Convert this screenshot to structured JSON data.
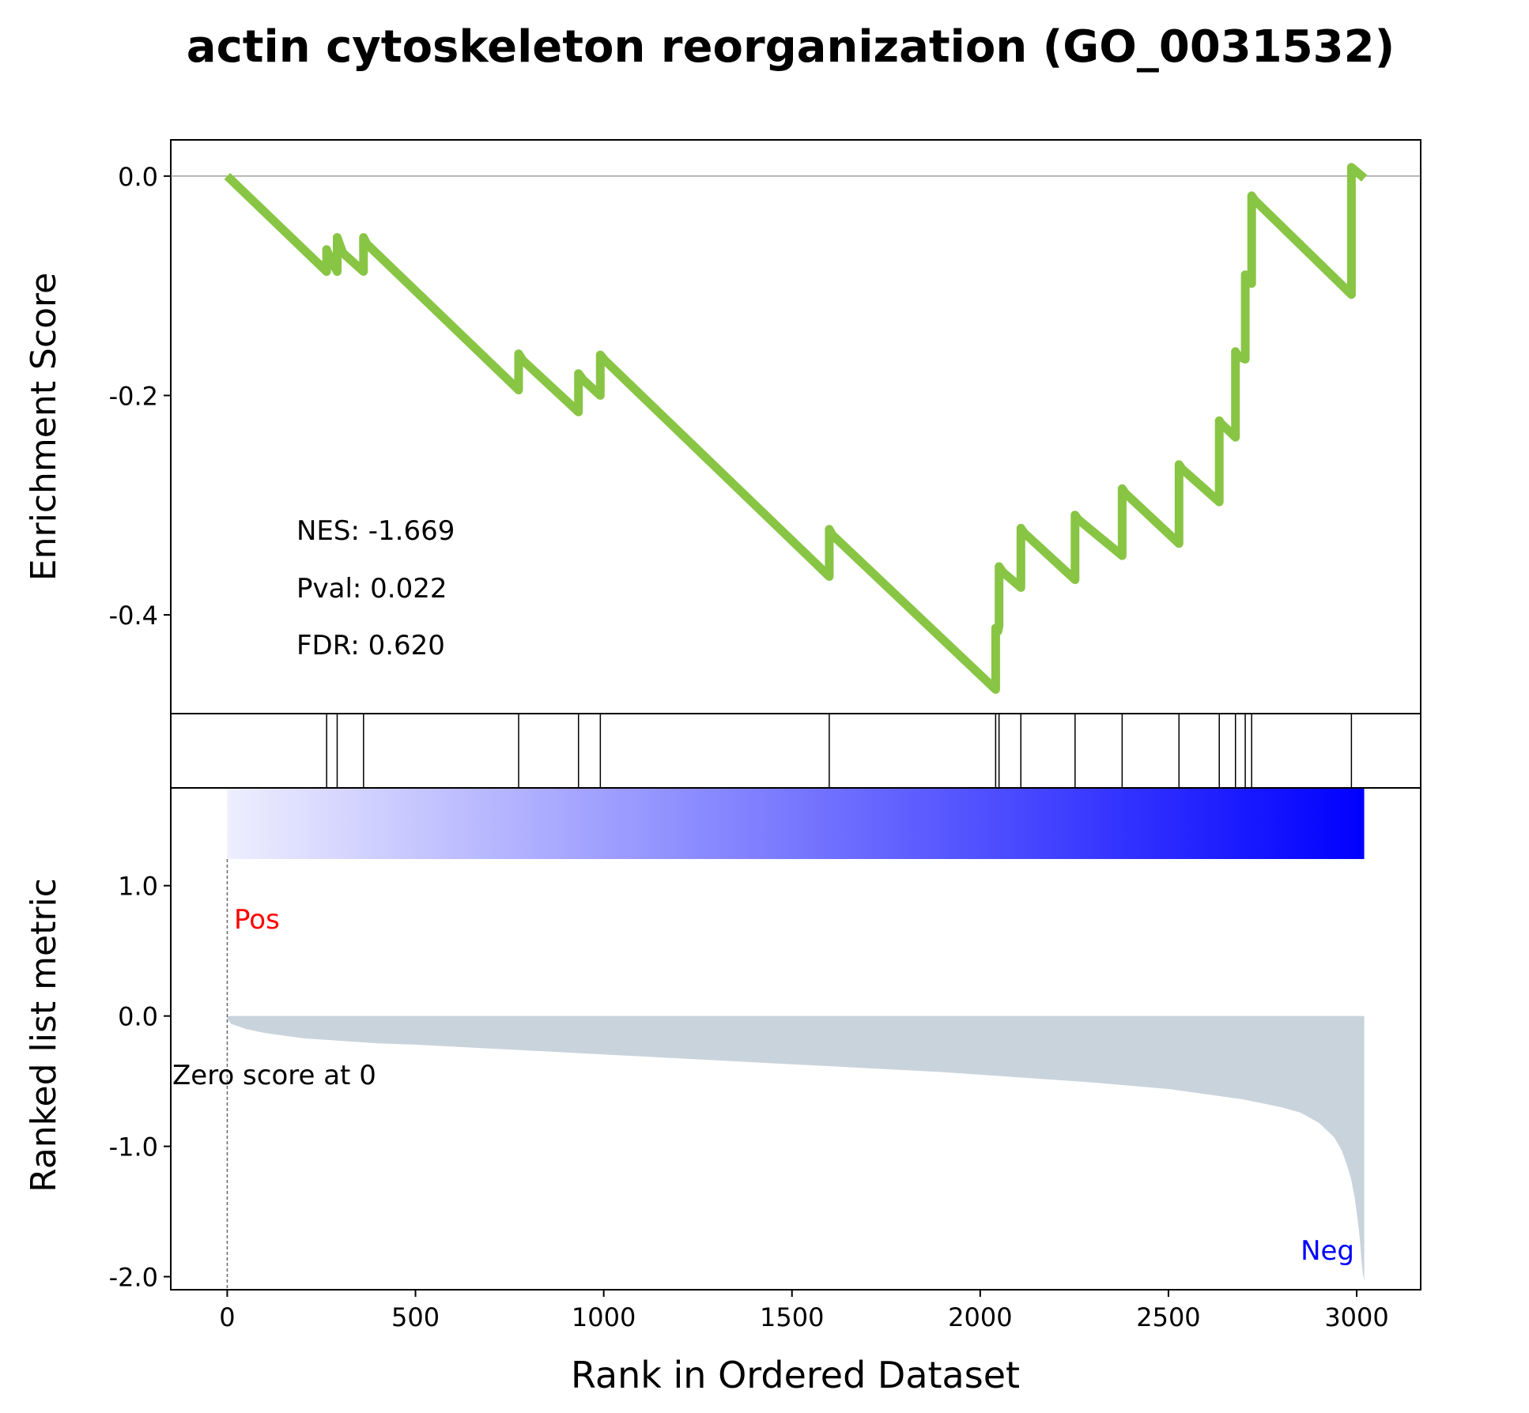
{
  "chart_data": {
    "type": "line",
    "title": "actin cytoskeleton reorganization (GO_0031532)",
    "colors": {
      "es_line": "#88c544",
      "hits": "#000000",
      "metric_fill": "#c9d3dc",
      "pos_label": "#ff0000",
      "neg_label": "#0000ff",
      "gradient_start": "#eeeeff",
      "gradient_end": "#0000ff",
      "zero_line": "#808080"
    },
    "top_panel": {
      "ylabel": "Enrichment Score",
      "ylim": [
        -0.49,
        0.033
      ],
      "yticks": [
        0.0,
        -0.2,
        -0.4
      ],
      "ytick_labels": [
        "0.0",
        "-0.2",
        "-0.4"
      ],
      "stats": [
        "NES: -1.669",
        "Pval: 0.022",
        "FDR: 0.620"
      ],
      "running_es": {
        "x": [
          0,
          264,
          264,
          278,
          292,
          292,
          307,
          362,
          362,
          371,
          774,
          774,
          785,
          933,
          933,
          946,
          991,
          991,
          1003,
          1599,
          1599,
          1607,
          2041,
          2041,
          2047,
          2050,
          2050,
          2060,
          2108,
          2108,
          2116,
          2252,
          2252,
          2260,
          2377,
          2377,
          2385,
          2528,
          2528,
          2536,
          2635,
          2635,
          2641,
          2678,
          2678,
          2685,
          2704,
          2704,
          2710,
          2721,
          2721,
          2729,
          2986,
          2986,
          3020
        ],
        "y": [
          0.0,
          -0.087,
          -0.067,
          -0.078,
          -0.087,
          -0.056,
          -0.07,
          -0.087,
          -0.056,
          -0.062,
          -0.195,
          -0.162,
          -0.168,
          -0.215,
          -0.18,
          -0.186,
          -0.2,
          -0.163,
          -0.168,
          -0.365,
          -0.322,
          -0.327,
          -0.468,
          -0.412,
          -0.415,
          -0.41,
          -0.356,
          -0.361,
          -0.375,
          -0.321,
          -0.325,
          -0.368,
          -0.309,
          -0.313,
          -0.346,
          -0.285,
          -0.289,
          -0.335,
          -0.263,
          -0.267,
          -0.297,
          -0.223,
          -0.226,
          -0.238,
          -0.16,
          -0.164,
          -0.167,
          -0.09,
          -0.093,
          -0.098,
          -0.018,
          -0.022,
          -0.108,
          0.008,
          -0.002
        ]
      }
    },
    "hits_panel": {
      "positions": [
        264,
        292,
        362,
        774,
        933,
        991,
        1599,
        2041,
        2050,
        2108,
        2252,
        2377,
        2528,
        2635,
        2678,
        2704,
        2721,
        2986
      ]
    },
    "bottom_panel": {
      "ylabel": "Ranked list metric",
      "xlabel": "Rank in Ordered Dataset",
      "ylim": [
        -2.1,
        1.75
      ],
      "yticks": [
        1.0,
        0.0,
        -1.0,
        -2.0
      ],
      "ytick_labels": [
        "1.0",
        "0.0",
        "-1.0",
        "-2.0"
      ],
      "pos_label": "Pos",
      "neg_label": "Neg",
      "zero_label": "Zero score at 0",
      "metric": {
        "x": [
          0,
          10,
          50,
          100,
          200,
          300,
          400,
          500,
          700,
          900,
          1100,
          1300,
          1500,
          1700,
          1900,
          2100,
          2300,
          2500,
          2600,
          2700,
          2800,
          2850,
          2900,
          2940,
          2960,
          2975,
          2985,
          2995,
          3002,
          3008,
          3012,
          3016,
          3020
        ],
        "y": [
          -0.02,
          -0.06,
          -0.1,
          -0.13,
          -0.17,
          -0.19,
          -0.21,
          -0.22,
          -0.25,
          -0.28,
          -0.31,
          -0.34,
          -0.37,
          -0.4,
          -0.43,
          -0.47,
          -0.51,
          -0.56,
          -0.6,
          -0.64,
          -0.7,
          -0.74,
          -0.82,
          -0.93,
          -1.03,
          -1.15,
          -1.25,
          -1.4,
          -1.55,
          -1.7,
          -1.85,
          -1.97,
          -2.03
        ]
      }
    },
    "xlim": [
      -150,
      3170
    ],
    "xticks": [
      0,
      500,
      1000,
      1500,
      2000,
      2500,
      3000
    ],
    "xtick_labels": [
      "0",
      "500",
      "1000",
      "1500",
      "2000",
      "2500",
      "3000"
    ]
  }
}
